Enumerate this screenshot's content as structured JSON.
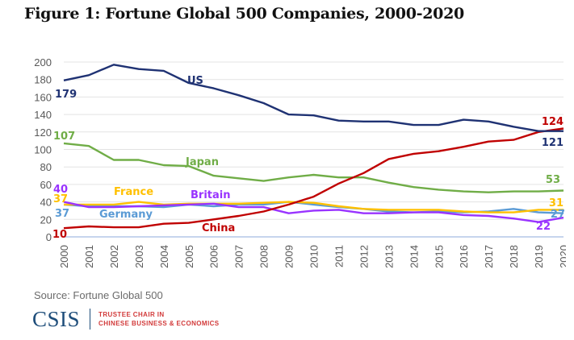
{
  "title": "Figure 1: Fortune Global 500 Companies, 2000-2020",
  "source": "Source:  Fortune Global 500",
  "logo": {
    "name": "CSIS",
    "line1": "TRUSTEE CHAIR IN",
    "line2": "CHINESE BUSINESS & ECONOMICS"
  },
  "chart_data": {
    "type": "line",
    "title": "Figure 1: Fortune Global 500 Companies, 2000-2020",
    "xlabel": "",
    "ylabel": "",
    "x": [
      2000,
      2001,
      2002,
      2003,
      2004,
      2005,
      2006,
      2007,
      2008,
      2009,
      2010,
      2011,
      2012,
      2013,
      2014,
      2015,
      2016,
      2017,
      2018,
      2019,
      2020
    ],
    "xtick_labels": [
      "2000",
      "2001",
      "2002",
      "2003",
      "2004",
      "2005",
      "2006",
      "2007",
      "2008",
      "2009",
      "2010",
      "2011",
      "2012",
      "2013",
      "2014",
      "2015",
      "2016",
      "2017",
      "2018",
      "2019",
      "2020"
    ],
    "yticks": [
      0,
      20,
      40,
      60,
      80,
      100,
      120,
      140,
      160,
      180,
      200
    ],
    "ylim": [
      0,
      200
    ],
    "grid": true,
    "legend": "inline labels",
    "series": [
      {
        "name": "US",
        "color": "#1f3273",
        "values": [
          179,
          185,
          197,
          192,
          190,
          176,
          170,
          162,
          153,
          140,
          139,
          133,
          132,
          132,
          128,
          128,
          134,
          132,
          126,
          121,
          121
        ],
        "start_label": "179",
        "end_label": "121"
      },
      {
        "name": "China",
        "color": "#c00000",
        "values": [
          10,
          12,
          11,
          11,
          15,
          16,
          20,
          24,
          29,
          37,
          46,
          61,
          73,
          89,
          95,
          98,
          103,
          109,
          111,
          120,
          124
        ],
        "start_label": "10",
        "end_label": "124"
      },
      {
        "name": "Japan",
        "color": "#70ad47",
        "values": [
          107,
          104,
          88,
          88,
          82,
          81,
          70,
          67,
          64,
          68,
          71,
          68,
          68,
          62,
          57,
          54,
          52,
          51,
          52,
          52,
          53
        ],
        "start_label": "107",
        "end_label": "53"
      },
      {
        "name": "France",
        "color": "#ffc000",
        "values": [
          37,
          37,
          37,
          40,
          37,
          38,
          38,
          38,
          39,
          40,
          39,
          35,
          32,
          31,
          31,
          31,
          29,
          28,
          28,
          31,
          31
        ],
        "start_label": "37",
        "end_label": "31"
      },
      {
        "name": "Germany",
        "color": "#5b9bd5",
        "values": [
          37,
          35,
          35,
          35,
          34,
          37,
          35,
          37,
          37,
          40,
          37,
          34,
          32,
          29,
          28,
          29,
          28,
          29,
          32,
          28,
          27
        ],
        "start_label": "37",
        "end_label": "27"
      },
      {
        "name": "Britain",
        "color": "#9933ff",
        "values": [
          40,
          34,
          34,
          35,
          36,
          37,
          38,
          34,
          34,
          27,
          30,
          31,
          27,
          27,
          28,
          28,
          25,
          24,
          21,
          17,
          22
        ],
        "start_label": "40",
        "end_label": "22"
      }
    ]
  }
}
